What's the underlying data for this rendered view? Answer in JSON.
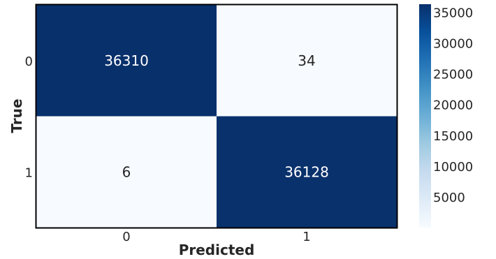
{
  "chart_data": {
    "type": "heatmap",
    "title": "",
    "xlabel": "Predicted",
    "ylabel": "True",
    "x_categories": [
      "0",
      "1"
    ],
    "y_categories": [
      "0",
      "1"
    ],
    "values": [
      [
        36310,
        34
      ],
      [
        6,
        36128
      ]
    ],
    "colormap": "Blues",
    "color_low": "#f7fbff",
    "color_high": "#08306b",
    "annotation_light_color": "#ffffff",
    "annotation_dark_color": "#262626",
    "colorbar": {
      "min": 0,
      "max": 36310,
      "ticks": [
        5000,
        10000,
        15000,
        20000,
        25000,
        30000,
        35000
      ],
      "tick_labels": [
        "5000",
        "10000",
        "15000",
        "20000",
        "25000",
        "30000",
        "35000"
      ]
    },
    "grid": false
  }
}
